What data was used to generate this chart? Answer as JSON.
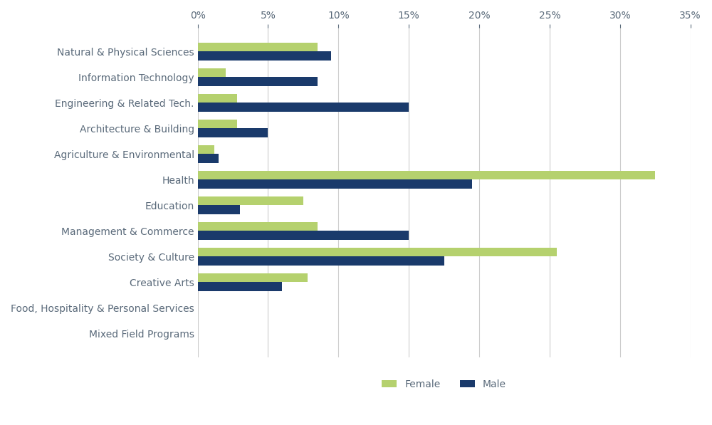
{
  "categories": [
    "Natural & Physical Sciences",
    "Information Technology",
    "Engineering & Related Tech.",
    "Architecture & Building",
    "Agriculture & Environmental",
    "Health",
    "Education",
    "Management & Commerce",
    "Society & Culture",
    "Creative Arts",
    "Food, Hospitality & Personal Services",
    "Mixed Field Programs"
  ],
  "female": [
    8.5,
    2.0,
    2.8,
    2.8,
    1.2,
    32.5,
    7.5,
    8.5,
    25.5,
    7.8,
    0.0,
    0.0
  ],
  "male": [
    9.5,
    8.5,
    15.0,
    5.0,
    1.5,
    19.5,
    3.0,
    15.0,
    17.5,
    6.0,
    0.0,
    0.0
  ],
  "female_color": "#b5d16e",
  "male_color": "#1a3a6b",
  "background_color": "#ffffff",
  "grid_color": "#cccccc",
  "label_color": "#5a6a7a",
  "xlim": [
    0,
    35
  ],
  "xtick_vals": [
    0,
    5,
    10,
    15,
    20,
    25,
    30,
    35
  ],
  "bar_height": 0.35,
  "legend_female": "Female",
  "legend_male": "Male",
  "label_fontsize": 10,
  "tick_fontsize": 10
}
